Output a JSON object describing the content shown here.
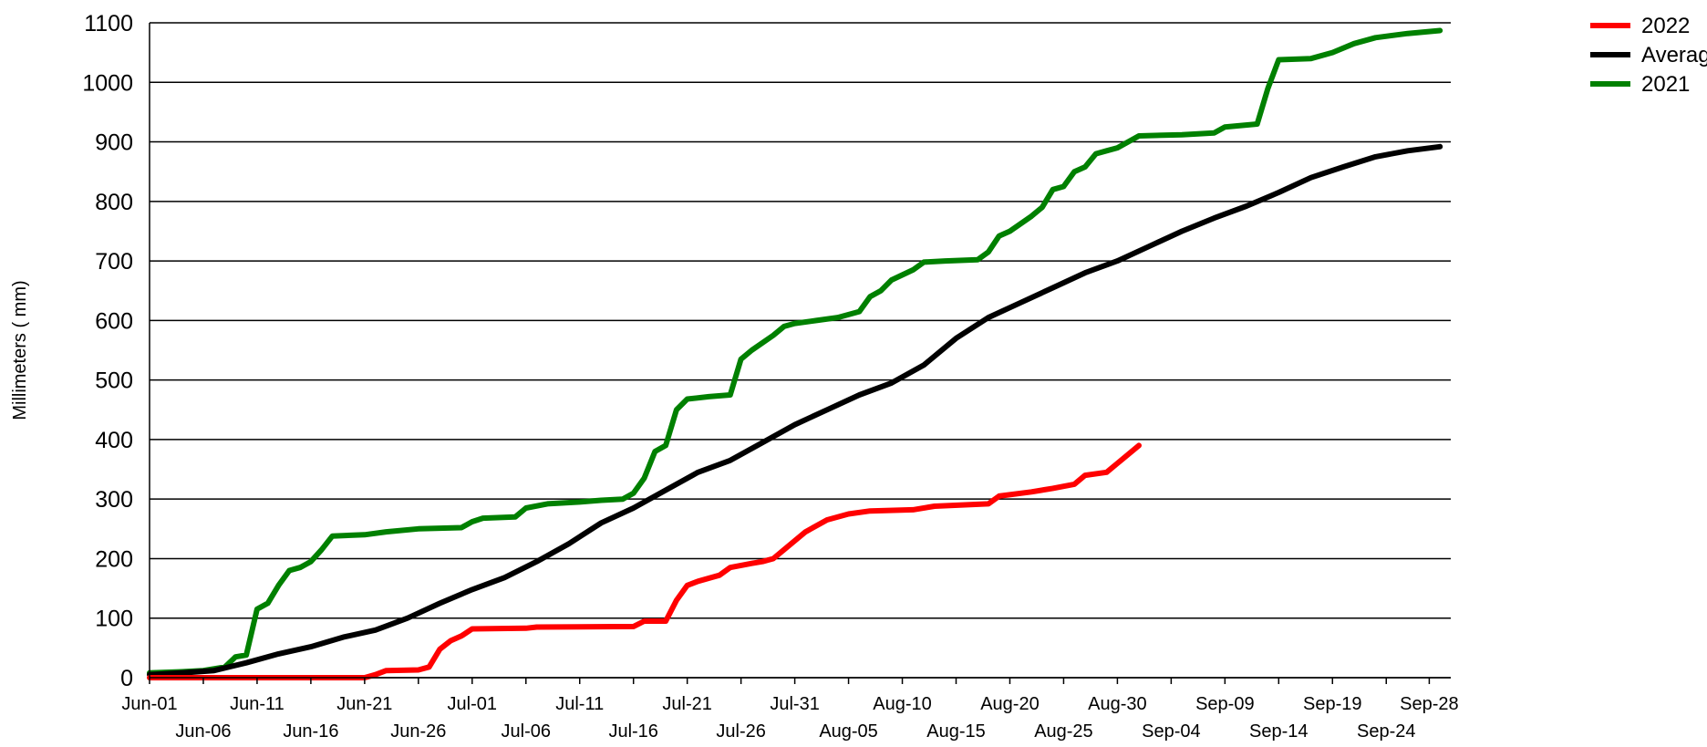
{
  "chart_data": {
    "type": "line",
    "ylabel": "Millimeters ( mm)",
    "xlabel": "",
    "ylim": [
      0,
      1100
    ],
    "yticks": [
      0,
      100,
      200,
      300,
      400,
      500,
      600,
      700,
      800,
      900,
      1000,
      1100
    ],
    "xlim": [
      "Jun-01",
      "Sep-30"
    ],
    "xticks": [
      "Jun-01",
      "Jun-06",
      "Jun-11",
      "Jun-16",
      "Jun-21",
      "Jun-26",
      "Jul-01",
      "Jul-06",
      "Jul-11",
      "Jul-16",
      "Jul-21",
      "Jul-26",
      "Jul-31",
      "Aug-05",
      "Aug-10",
      "Aug-15",
      "Aug-20",
      "Aug-25",
      "Aug-30",
      "Sep-04",
      "Sep-09",
      "Sep-14",
      "Sep-19",
      "Sep-24",
      "Sep-28"
    ],
    "grid": "horizontal",
    "legend_position": "top-right",
    "series": [
      {
        "name": "2022",
        "color": "#ff0000",
        "points": [
          [
            "Jun-01",
            0
          ],
          [
            "Jun-21",
            0
          ],
          [
            "Jun-22",
            5
          ],
          [
            "Jun-23",
            12
          ],
          [
            "Jun-26",
            13
          ],
          [
            "Jun-27",
            18
          ],
          [
            "Jun-28",
            48
          ],
          [
            "Jun-29",
            62
          ],
          [
            "Jun-30",
            70
          ],
          [
            "Jul-01",
            82
          ],
          [
            "Jul-06",
            83
          ],
          [
            "Jul-07",
            85
          ],
          [
            "Jul-16",
            86
          ],
          [
            "Jul-17",
            95
          ],
          [
            "Jul-19",
            95
          ],
          [
            "Jul-20",
            130
          ],
          [
            "Jul-21",
            155
          ],
          [
            "Jul-22",
            162
          ],
          [
            "Jul-24",
            172
          ],
          [
            "Jul-25",
            185
          ],
          [
            "Jul-27",
            192
          ],
          [
            "Jul-28",
            195
          ],
          [
            "Jul-29",
            200
          ],
          [
            "Jul-30",
            215
          ],
          [
            "Aug-01",
            245
          ],
          [
            "Aug-03",
            265
          ],
          [
            "Aug-05",
            275
          ],
          [
            "Aug-07",
            280
          ],
          [
            "Aug-11",
            282
          ],
          [
            "Aug-13",
            288
          ],
          [
            "Aug-18",
            292
          ],
          [
            "Aug-19",
            305
          ],
          [
            "Aug-22",
            312
          ],
          [
            "Aug-24",
            318
          ],
          [
            "Aug-26",
            325
          ],
          [
            "Aug-27",
            340
          ],
          [
            "Aug-29",
            345
          ],
          [
            "Aug-30",
            360
          ],
          [
            "Sep-01",
            390
          ]
        ]
      },
      {
        "name": "Average",
        "color": "#000000",
        "points": [
          [
            "Jun-01",
            5
          ],
          [
            "Jun-04",
            8
          ],
          [
            "Jun-07",
            12
          ],
          [
            "Jun-10",
            25
          ],
          [
            "Jun-13",
            40
          ],
          [
            "Jun-16",
            52
          ],
          [
            "Jun-19",
            68
          ],
          [
            "Jun-22",
            80
          ],
          [
            "Jun-25",
            100
          ],
          [
            "Jun-28",
            125
          ],
          [
            "Jul-01",
            148
          ],
          [
            "Jul-04",
            168
          ],
          [
            "Jul-07",
            195
          ],
          [
            "Jul-10",
            225
          ],
          [
            "Jul-13",
            260
          ],
          [
            "Jul-16",
            285
          ],
          [
            "Jul-19",
            315
          ],
          [
            "Jul-22",
            345
          ],
          [
            "Jul-25",
            365
          ],
          [
            "Jul-28",
            395
          ],
          [
            "Jul-31",
            425
          ],
          [
            "Aug-03",
            450
          ],
          [
            "Aug-06",
            475
          ],
          [
            "Aug-09",
            495
          ],
          [
            "Aug-12",
            525
          ],
          [
            "Aug-15",
            570
          ],
          [
            "Aug-18",
            605
          ],
          [
            "Aug-21",
            630
          ],
          [
            "Aug-24",
            655
          ],
          [
            "Aug-27",
            680
          ],
          [
            "Aug-30",
            700
          ],
          [
            "Sep-02",
            725
          ],
          [
            "Sep-05",
            750
          ],
          [
            "Sep-08",
            772
          ],
          [
            "Sep-11",
            792
          ],
          [
            "Sep-14",
            815
          ],
          [
            "Sep-17",
            840
          ],
          [
            "Sep-20",
            858
          ],
          [
            "Sep-23",
            875
          ],
          [
            "Sep-26",
            885
          ],
          [
            "Sep-29",
            892
          ]
        ]
      },
      {
        "name": "2021",
        "color": "#008000",
        "points": [
          [
            "Jun-01",
            8
          ],
          [
            "Jun-04",
            10
          ],
          [
            "Jun-06",
            12
          ],
          [
            "Jun-08",
            18
          ],
          [
            "Jun-09",
            35
          ],
          [
            "Jun-10",
            38
          ],
          [
            "Jun-11",
            115
          ],
          [
            "Jun-12",
            125
          ],
          [
            "Jun-13",
            155
          ],
          [
            "Jun-14",
            180
          ],
          [
            "Jun-15",
            185
          ],
          [
            "Jun-16",
            195
          ],
          [
            "Jun-17",
            215
          ],
          [
            "Jun-18",
            238
          ],
          [
            "Jun-21",
            240
          ],
          [
            "Jun-23",
            245
          ],
          [
            "Jun-26",
            250
          ],
          [
            "Jun-30",
            252
          ],
          [
            "Jul-01",
            262
          ],
          [
            "Jul-02",
            268
          ],
          [
            "Jul-05",
            270
          ],
          [
            "Jul-06",
            285
          ],
          [
            "Jul-08",
            292
          ],
          [
            "Jul-11",
            295
          ],
          [
            "Jul-13",
            298
          ],
          [
            "Jul-15",
            300
          ],
          [
            "Jul-16",
            310
          ],
          [
            "Jul-17",
            335
          ],
          [
            "Jul-18",
            380
          ],
          [
            "Jul-19",
            390
          ],
          [
            "Jul-20",
            450
          ],
          [
            "Jul-21",
            468
          ],
          [
            "Jul-23",
            472
          ],
          [
            "Jul-25",
            475
          ],
          [
            "Jul-26",
            535
          ],
          [
            "Jul-27",
            550
          ],
          [
            "Jul-29",
            575
          ],
          [
            "Jul-30",
            590
          ],
          [
            "Jul-31",
            595
          ],
          [
            "Aug-02",
            600
          ],
          [
            "Aug-04",
            605
          ],
          [
            "Aug-06",
            615
          ],
          [
            "Aug-07",
            640
          ],
          [
            "Aug-08",
            650
          ],
          [
            "Aug-09",
            668
          ],
          [
            "Aug-11",
            685
          ],
          [
            "Aug-12",
            698
          ],
          [
            "Aug-14",
            700
          ],
          [
            "Aug-17",
            702
          ],
          [
            "Aug-18",
            715
          ],
          [
            "Aug-19",
            742
          ],
          [
            "Aug-20",
            750
          ],
          [
            "Aug-22",
            775
          ],
          [
            "Aug-23",
            790
          ],
          [
            "Aug-24",
            820
          ],
          [
            "Aug-25",
            825
          ],
          [
            "Aug-26",
            850
          ],
          [
            "Aug-27",
            858
          ],
          [
            "Aug-28",
            880
          ],
          [
            "Aug-29",
            885
          ],
          [
            "Aug-30",
            890
          ],
          [
            "Sep-01",
            910
          ],
          [
            "Sep-05",
            912
          ],
          [
            "Sep-08",
            915
          ],
          [
            "Sep-09",
            925
          ],
          [
            "Sep-12",
            930
          ],
          [
            "Sep-13",
            990
          ],
          [
            "Sep-14",
            1038
          ],
          [
            "Sep-17",
            1040
          ],
          [
            "Sep-19",
            1050
          ],
          [
            "Sep-21",
            1065
          ],
          [
            "Sep-23",
            1075
          ],
          [
            "Sep-26",
            1082
          ],
          [
            "Sep-29",
            1087
          ]
        ]
      }
    ]
  }
}
